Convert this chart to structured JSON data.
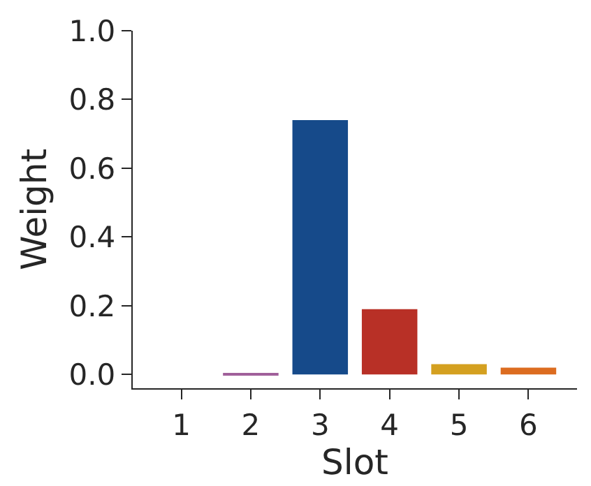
{
  "chart_data": {
    "type": "bar",
    "xlabel": "Slot",
    "ylabel": "Weight",
    "categories": [
      "1",
      "2",
      "3",
      "4",
      "5",
      "6"
    ],
    "values": [
      0,
      0.004,
      0.74,
      0.19,
      0.03,
      0.02
    ],
    "colors": [
      "#3a7a3a",
      "#a0609a",
      "#164a8a",
      "#b83026",
      "#d4a020",
      "#dc6c20"
    ],
    "ylim": [
      -0.04,
      1.0
    ],
    "yticks": [
      {
        "value": 0,
        "label": "0.0"
      },
      {
        "value": 0.2,
        "label": "0.2"
      },
      {
        "value": 0.4,
        "label": "0.4"
      },
      {
        "value": 0.6,
        "label": "0.6"
      },
      {
        "value": 0.8,
        "label": "0.8"
      },
      {
        "value": 1.0,
        "label": "1.0"
      }
    ]
  }
}
